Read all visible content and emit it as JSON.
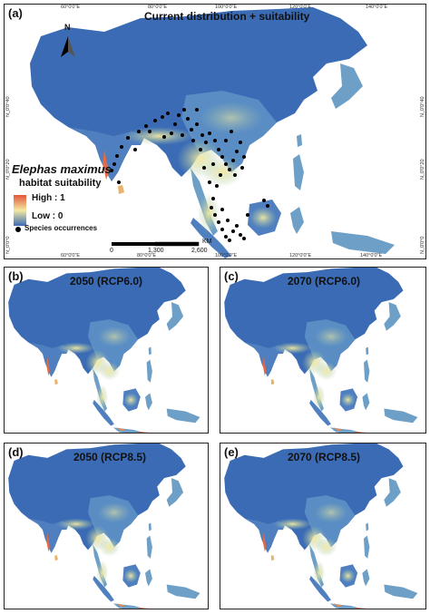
{
  "panel_a": {
    "label": "(a)",
    "title": "Current distribution + suitability",
    "north_label": "N",
    "top_ticks": [
      "60°0'0\"E",
      "80°0'0\"E",
      "100°0'0\"E",
      "120°0'0\"E",
      "140°0'0\"E"
    ],
    "bottom_ticks": [
      "60°0'0\"E",
      "80°0'0\"E",
      "100°0'0\"E",
      "120°0'0\"E",
      "140°0'0\"E"
    ],
    "left_ticks": [
      "N_0'0°40",
      "N_0'0°20",
      "N_0'0°0"
    ],
    "right_ticks": [
      "N_0'0°40",
      "N_0'0°20",
      "N_0'0°0"
    ],
    "legend": {
      "species": "Elephas maximus",
      "subtitle": "habitat suitability",
      "high": "High : 1",
      "low": "Low : 0",
      "occurrences": "Species occurrences"
    },
    "scalebar": {
      "unit": "KM",
      "ticks": [
        "0",
        "1,300",
        "2,600"
      ]
    }
  },
  "panels": [
    {
      "label": "(b)",
      "title": "2050 (RCP6.0)"
    },
    {
      "label": "(c)",
      "title": "2070 (RCP6.0)"
    },
    {
      "label": "(d)",
      "title": "2050 (RCP8.5)"
    },
    {
      "label": "(e)",
      "title": "2070 (RCP8.5)"
    }
  ],
  "colors": {
    "low": "#3b6bb5",
    "mid": "#f3e9a0",
    "high": "#e2553a",
    "occurrence": "#000000"
  }
}
